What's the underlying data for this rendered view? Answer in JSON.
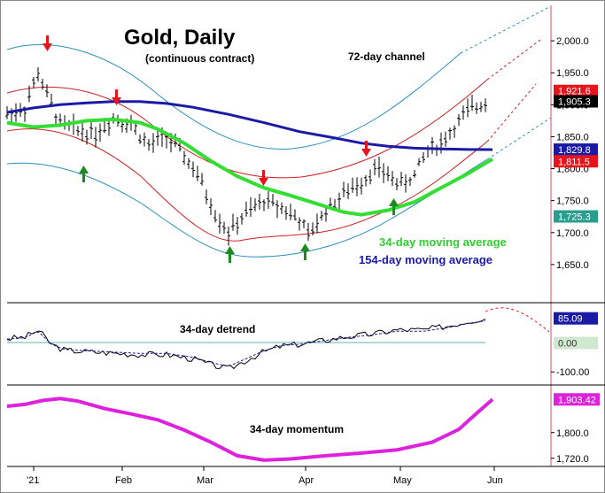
{
  "chart_data": {
    "type": "line",
    "title": "Gold, Daily",
    "subtitle": "(continuous contract)",
    "annotations": {
      "channel": "72-day channel",
      "ma34": "34-day moving average",
      "ma154": "154-day moving average",
      "detrend": "34-day detrend",
      "momentum": "34-day momentum"
    },
    "x_ticks": [
      "'21",
      "Feb",
      "Mar",
      "Apr",
      "May",
      "Jun"
    ],
    "price_panel": {
      "ylim": [
        1600,
        2050
      ],
      "y_ticks": [
        "2,000.0",
        "1,950.0",
        "1,900.0",
        "1,850.0",
        "1,800.0",
        "1,750.0",
        "1,700.0",
        "1,650.0"
      ],
      "badges": [
        {
          "label": "1,921.6",
          "value": 1921.6,
          "bg": "#e8141c",
          "fg": "#ffffff"
        },
        {
          "label": "1,905.3",
          "value": 1905.3,
          "bg": "#000000",
          "fg": "#ffffff"
        },
        {
          "label": "1,829.8",
          "value": 1829.8,
          "bg": "#1a1aa6",
          "fg": "#ffffff"
        },
        {
          "label": "1,811.5",
          "value": 1811.5,
          "bg": "#e8141c",
          "fg": "#ffffff"
        },
        {
          "label": "1,725.3",
          "value": 1725.3,
          "bg": "#2a9d8f",
          "fg": "#ffffff"
        }
      ],
      "series": [
        {
          "name": "154-day moving average",
          "color": "#1a1aa6",
          "x": [
            0,
            30,
            60,
            90,
            120,
            150,
            180,
            210,
            250,
            290,
            330,
            370,
            400,
            430,
            460,
            490,
            520,
            548
          ],
          "values": [
            1888,
            1895,
            1900,
            1903,
            1905,
            1905,
            1902,
            1896,
            1885,
            1872,
            1858,
            1848,
            1840,
            1835,
            1832,
            1831,
            1830,
            1829.8
          ]
        },
        {
          "name": "34-day moving average",
          "color": "#33dd33",
          "x": [
            0,
            30,
            60,
            90,
            120,
            150,
            170,
            200,
            230,
            260,
            290,
            320,
            350,
            380,
            400,
            430,
            460,
            490,
            520,
            548
          ],
          "values": [
            1872,
            1865,
            1868,
            1875,
            1877,
            1872,
            1862,
            1840,
            1812,
            1788,
            1770,
            1758,
            1745,
            1732,
            1728,
            1735,
            1748,
            1770,
            1792,
            1815
          ]
        }
      ]
    },
    "detrend_panel": {
      "ylim": [
        -130,
        130
      ],
      "y_ticks": [
        "-100.00"
      ],
      "badges": [
        {
          "label": "85.09",
          "value": 85.09,
          "bg": "#1a1aa6",
          "fg": "#ffffff"
        },
        {
          "label": "0.00",
          "value": 0,
          "bg": "#cfe8cf",
          "fg": "#333333"
        }
      ]
    },
    "momentum_panel": {
      "ylim": [
        1700,
        1940
      ],
      "y_ticks": [
        "1,800.0",
        "1,720.0"
      ],
      "badges": [
        {
          "label": "1,903.42",
          "value": 1903.42,
          "bg": "#dd22dd",
          "fg": "#ffffff"
        }
      ],
      "series": [
        {
          "name": "34-day momentum",
          "color": "#dd22dd",
          "x": [
            0,
            20,
            40,
            60,
            80,
            110,
            140,
            170,
            200,
            230,
            260,
            290,
            320,
            360,
            400,
            440,
            480,
            510,
            530,
            548
          ],
          "values": [
            1882,
            1888,
            1900,
            1906,
            1898,
            1875,
            1858,
            1840,
            1808,
            1770,
            1728,
            1714,
            1718,
            1728,
            1736,
            1746,
            1770,
            1810,
            1860,
            1903.42
          ]
        }
      ]
    }
  }
}
